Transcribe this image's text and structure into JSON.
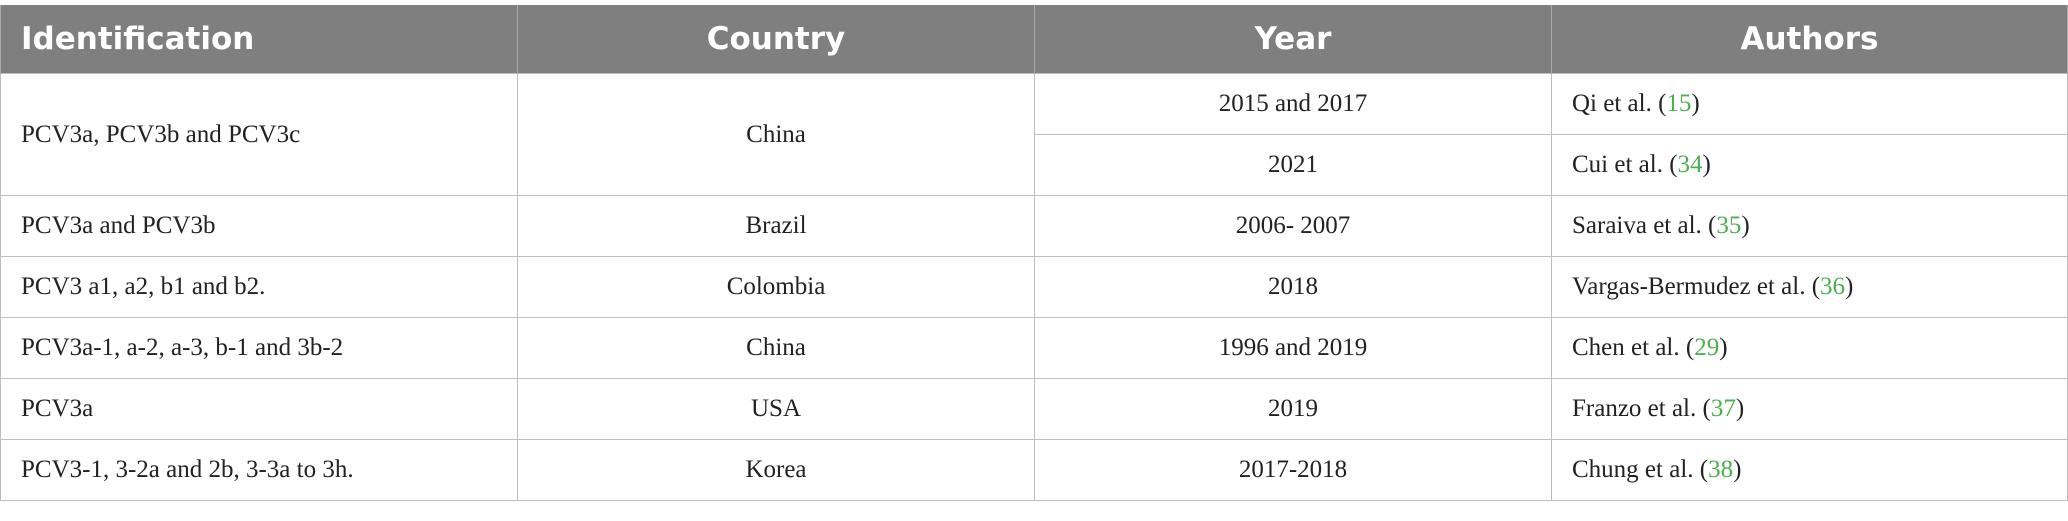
{
  "table": {
    "header": [
      "Identification",
      "Country",
      "Year",
      "Authors"
    ],
    "rows": [
      {
        "identification": "PCV3a, PCV3b and PCV3c",
        "country": "China",
        "entries": [
          {
            "year": "2015 and 2017",
            "author": "Qi et al. (",
            "ref": "15",
            "close": ")"
          },
          {
            "year": "2021",
            "author": "Cui et al. (",
            "ref": "34",
            "close": ")"
          }
        ]
      },
      {
        "identification": "PCV3a and PCV3b",
        "country": "Brazil",
        "entries": [
          {
            "year": "2006- 2007",
            "author": "Saraiva et al. (",
            "ref": "35",
            "close": ")"
          }
        ]
      },
      {
        "identification": "PCV3 a1, a2, b1 and b2.",
        "country": "Colombia",
        "entries": [
          {
            "year": "2018",
            "author": "Vargas-Bermudez et al. (",
            "ref": "36",
            "close": ")"
          }
        ]
      },
      {
        "identification": "PCV3a-1, a-2, a-3, b-1 and 3b-2",
        "country": "China",
        "entries": [
          {
            "year": "1996 and 2019",
            "author": "Chen et al. (",
            "ref": "29",
            "close": ")"
          }
        ]
      },
      {
        "identification": "PCV3a",
        "country": "USA",
        "entries": [
          {
            "year": "2019",
            "author": "Franzo et al. (",
            "ref": "37",
            "close": ")"
          }
        ]
      },
      {
        "identification": "PCV3-1, 3-2a and 2b, 3-3a to 3h.",
        "country": "Korea",
        "entries": [
          {
            "year": "2017-2018",
            "author": "Chung et al. (",
            "ref": "38",
            "close": ")"
          }
        ]
      }
    ]
  }
}
